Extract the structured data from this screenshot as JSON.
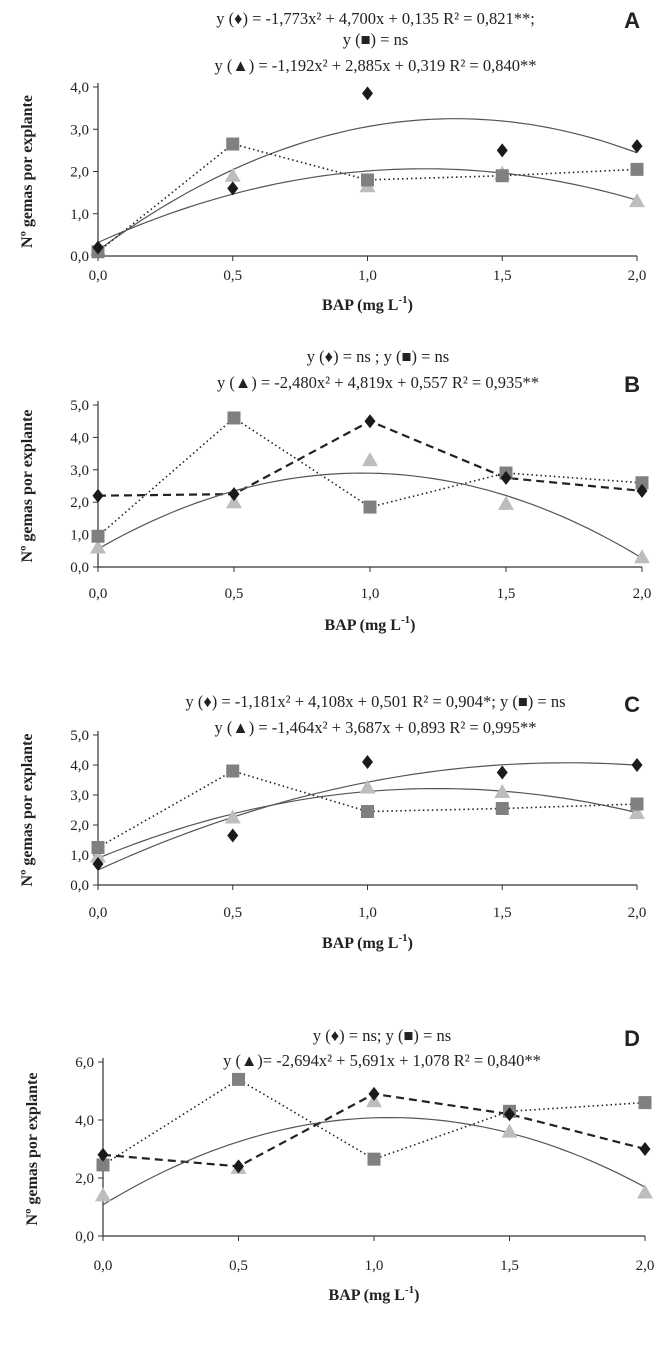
{
  "colors": {
    "diamond": "#1a1a1a",
    "square": "#808080",
    "triangle": "#bdbdbd",
    "axis": "#333333"
  },
  "chart_data": [
    {
      "type": "scatter",
      "panel": "A",
      "eq_lines": [
        "y (♦) = -1,773x² + 4,700x + 0,135   R² = 0,821**;",
        "y (■) = ns",
        "y (▲) = -1,192x² + 2,885x + 0,319   R² = 0,840**"
      ],
      "xlabel": "BAP (mg L-1)",
      "ylabel": "Nº gemas por explante",
      "x": [
        0,
        0.5,
        1,
        1.5,
        2
      ],
      "x_ticks": [
        "0,0",
        "0,5",
        "1,0",
        "1,5",
        "2,0"
      ],
      "y_ticks": [
        "0,0",
        "1,0",
        "2,0",
        "3,0",
        "4,0"
      ],
      "ylim": [
        0,
        4
      ],
      "series": [
        {
          "marker": "diamond",
          "values": [
            0.2,
            1.6,
            3.85,
            2.5,
            2.6
          ],
          "line": "none",
          "fit": [
            -1.773,
            4.7,
            0.135
          ]
        },
        {
          "marker": "square",
          "values": [
            0.1,
            2.65,
            1.8,
            1.9,
            2.05
          ],
          "line": "dotted"
        },
        {
          "marker": "triangle",
          "values": [
            0.15,
            1.9,
            1.65,
            1.95,
            1.3
          ],
          "line": "none",
          "fit": [
            -1.192,
            2.885,
            0.319
          ]
        }
      ]
    },
    {
      "type": "scatter",
      "panel": "B",
      "eq_lines": [
        "y (♦) = ns ;   y (■) = ns",
        "y (▲) = -2,480x² + 4,819x + 0,557   R² = 0,935**"
      ],
      "xlabel": "BAP (mg L-1)",
      "ylabel": "Nº gemas por explante",
      "x": [
        0,
        0.5,
        1,
        1.5,
        2
      ],
      "x_ticks": [
        "0,0",
        "0,5",
        "1,0",
        "1,5",
        "2,0"
      ],
      "y_ticks": [
        "0,0",
        "1,0",
        "2,0",
        "3,0",
        "4,0",
        "5,0"
      ],
      "ylim": [
        0,
        5
      ],
      "series": [
        {
          "marker": "diamond",
          "values": [
            2.2,
            2.25,
            4.5,
            2.75,
            2.35
          ],
          "line": "dashed"
        },
        {
          "marker": "square",
          "values": [
            0.95,
            4.6,
            1.85,
            2.9,
            2.6
          ],
          "line": "dotted"
        },
        {
          "marker": "triangle",
          "values": [
            0.6,
            2.0,
            3.3,
            1.95,
            0.3
          ],
          "line": "none",
          "fit": [
            -2.48,
            4.819,
            0.557
          ]
        }
      ]
    },
    {
      "type": "scatter",
      "panel": "C",
      "eq_lines": [
        "y (♦)  = -1,181x² + 4,108x + 0,501   R² = 0,904*;   y (■) = ns",
        "y (▲) = -1,464x² + 3,687x + 0,893    R² = 0,995**"
      ],
      "xlabel": "BAP (mg L-1)",
      "ylabel": "Nº gemas por explante",
      "x": [
        0,
        0.5,
        1,
        1.5,
        2
      ],
      "x_ticks": [
        "0,0",
        "0,5",
        "1,0",
        "1,5",
        "2,0"
      ],
      "y_ticks": [
        "0,0",
        "1,0",
        "2,0",
        "3,0",
        "4,0",
        "5,0"
      ],
      "ylim": [
        0,
        5
      ],
      "series": [
        {
          "marker": "diamond",
          "values": [
            0.7,
            1.65,
            4.1,
            3.75,
            4.0
          ],
          "line": "none",
          "fit": [
            -1.181,
            4.108,
            0.501
          ]
        },
        {
          "marker": "square",
          "values": [
            1.25,
            3.8,
            2.45,
            2.55,
            2.7
          ],
          "line": "dotted"
        },
        {
          "marker": "triangle",
          "values": [
            0.95,
            2.25,
            3.25,
            3.1,
            2.4
          ],
          "line": "none",
          "fit": [
            -1.464,
            3.687,
            0.893
          ]
        }
      ]
    },
    {
      "type": "scatter",
      "panel": "D",
      "eq_lines": [
        "y (♦) = ns;   y (■) = ns",
        "y (▲)= -2,694x² + 5,691x + 1,078   R² = 0,840**"
      ],
      "xlabel": "BAP (mg L-1)",
      "ylabel": "Nº gemas por explante",
      "x": [
        0,
        0.5,
        1,
        1.5,
        2
      ],
      "x_ticks": [
        "0,0",
        "0,5",
        "1,0",
        "1,5",
        "2,0"
      ],
      "y_ticks": [
        "0,0",
        "2,0",
        "4,0",
        "6,0"
      ],
      "ylim": [
        0,
        6
      ],
      "series": [
        {
          "marker": "diamond",
          "values": [
            2.8,
            2.4,
            4.9,
            4.2,
            3.0
          ],
          "line": "dashed"
        },
        {
          "marker": "square",
          "values": [
            2.45,
            5.4,
            2.65,
            4.3,
            4.6
          ],
          "line": "dotted"
        },
        {
          "marker": "triangle",
          "values": [
            1.4,
            2.35,
            4.65,
            3.6,
            1.5
          ],
          "line": "none",
          "fit": [
            -2.694,
            5.691,
            1.078
          ]
        }
      ]
    }
  ]
}
